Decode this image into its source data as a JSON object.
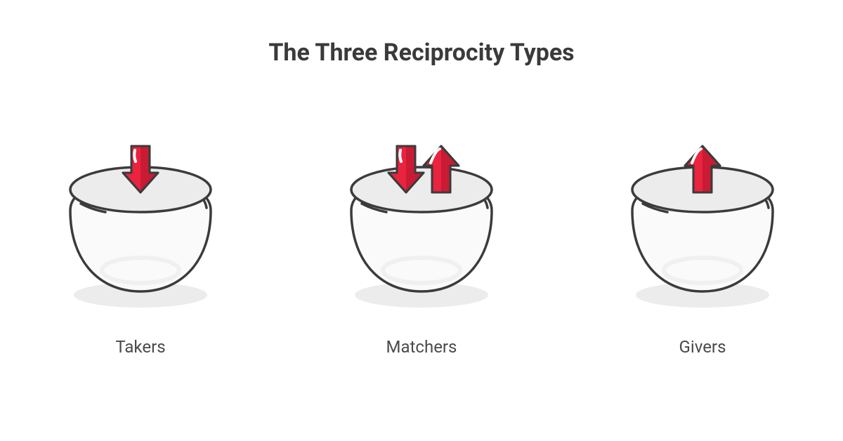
{
  "type": "infographic",
  "title": "The Three Reciprocity Types",
  "title_fontsize": 34,
  "title_color": "#3a3a3a",
  "title_weight": 700,
  "background_color": "#ffffff",
  "label_fontsize": 24,
  "label_color": "#4a4a4a",
  "colors": {
    "bowl_outline": "#3b3b3b",
    "bowl_top_fill": "#ececec",
    "bowl_body_fill": "#fafafa",
    "bowl_inner_ellipse": "#f0f0f0",
    "bowl_shadow": "#ececec",
    "bowl_highlight": "#ffffff",
    "arrow_fill": "#ea233f",
    "arrow_shade": "#c91b33",
    "arrow_outline": "#3b3b3b",
    "arrow_highlight": "#ffffff"
  },
  "items": [
    {
      "label": "Takers",
      "arrows": [
        "down"
      ]
    },
    {
      "label": "Matchers",
      "arrows": [
        "down",
        "up"
      ]
    },
    {
      "label": "Givers",
      "arrows": [
        "up"
      ]
    }
  ]
}
